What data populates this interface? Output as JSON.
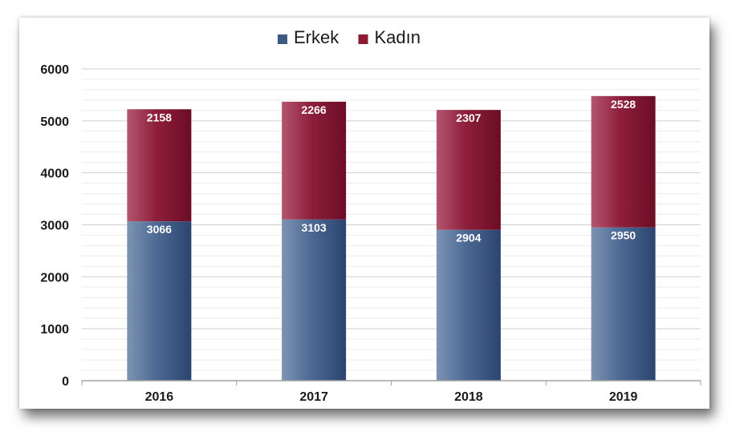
{
  "chart_data": {
    "type": "bar",
    "stacked": true,
    "categories": [
      "2016",
      "2017",
      "2018",
      "2019"
    ],
    "series": [
      {
        "name": "Erkek",
        "values": [
          3066,
          3103,
          2904,
          2950
        ],
        "color": "#3d5a85"
      },
      {
        "name": "Kadın",
        "values": [
          2158,
          2266,
          2307,
          2528
        ],
        "color": "#8b1a32"
      }
    ],
    "ylim": [
      0,
      6000
    ],
    "yticks": [
      "0",
      "1000",
      "2000",
      "3000",
      "4000",
      "5000",
      "6000"
    ],
    "grid": true,
    "legend": "top"
  }
}
